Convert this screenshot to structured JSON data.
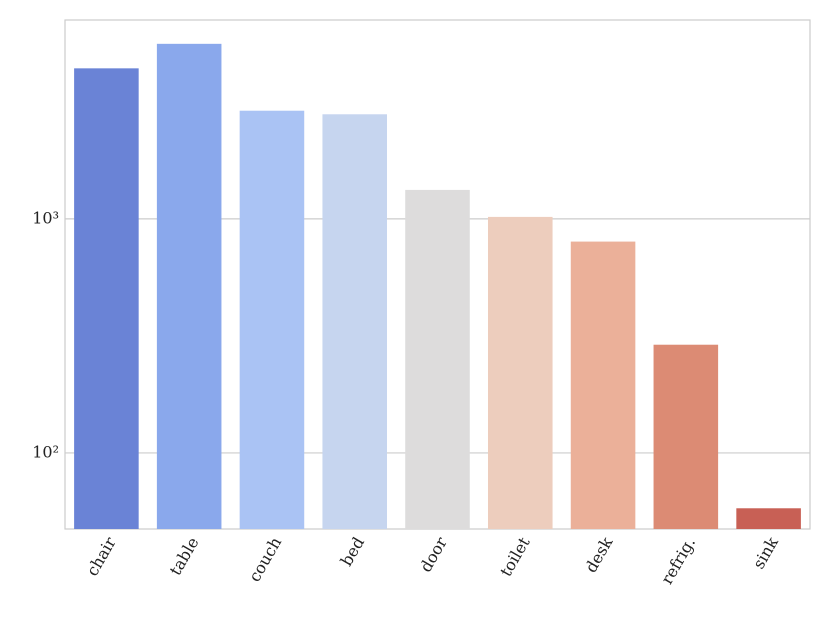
{
  "chart_data": {
    "type": "bar",
    "categories": [
      "chair",
      "table",
      "couch",
      "bed",
      "door",
      "toilet",
      "desk",
      "refrig.",
      "sink"
    ],
    "values": [
      4400,
      5600,
      2900,
      2800,
      1330,
      1020,
      800,
      290,
      58
    ],
    "colors": [
      "#6a83d6",
      "#8aa8ec",
      "#aac3f4",
      "#c6d5ef",
      "#dddcdc",
      "#edcdbd",
      "#ebb099",
      "#dc8b74",
      "#c86055"
    ],
    "ylim": [
      47.3,
      7080
    ],
    "log_scale": true,
    "yticks": [
      {
        "value": 100,
        "label": "10²"
      },
      {
        "value": 1000,
        "label": "10³"
      }
    ],
    "grid": true
  }
}
